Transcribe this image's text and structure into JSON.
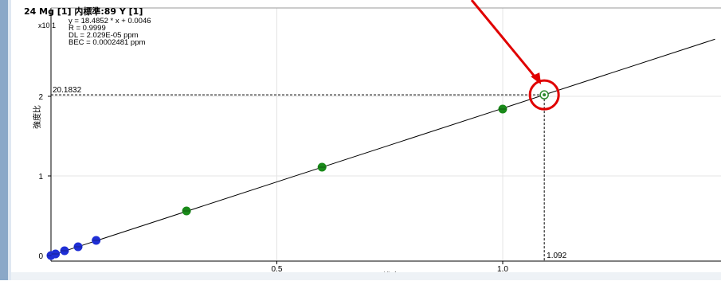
{
  "chart_data": {
    "type": "scatter",
    "title": "24 Mg [1] 内標準:89  Y [1]",
    "xlabel": "濃度(ppm)",
    "ylabel": "強度比",
    "y_scale_label": "x10 1",
    "xlim": [
      0,
      1.47
    ],
    "ylim": [
      -0.03,
      2.4
    ],
    "x_ticks": [
      0.5,
      1.0
    ],
    "x_tick_labels": [
      "0.5",
      "1.0"
    ],
    "y_ticks": [
      0,
      1,
      2
    ],
    "y_tick_labels": [
      "0",
      "1",
      "2"
    ],
    "grid": true,
    "regression": {
      "equation": "y = 18.4852 * x  + 0.0046",
      "slope": 1.84852,
      "intercept": 0.00046,
      "r": "R =  0.9999",
      "dl": "DL = 2.029E-05 ppm",
      "bec": "BEC = 0.0002481 ppm"
    },
    "series": [
      {
        "color": "#1f2fd6",
        "points": [
          [
            0.0,
            0.0
          ],
          [
            0.01,
            0.02
          ],
          [
            0.03,
            0.06
          ],
          [
            0.06,
            0.11
          ],
          [
            0.1,
            0.19
          ]
        ]
      },
      {
        "color": "#1a8a1a",
        "points": [
          [
            0.3,
            0.56
          ],
          [
            0.6,
            1.11
          ],
          [
            1.0,
            1.84
          ]
        ]
      }
    ],
    "highlight_point": {
      "x": 1.092,
      "y": 2.01832,
      "color": "#2e8b2e"
    },
    "reference_labels": {
      "y": "20.1832",
      "x": "1.092"
    },
    "annotation": {
      "type": "circle-with-arrow",
      "color": "#e00000"
    }
  }
}
